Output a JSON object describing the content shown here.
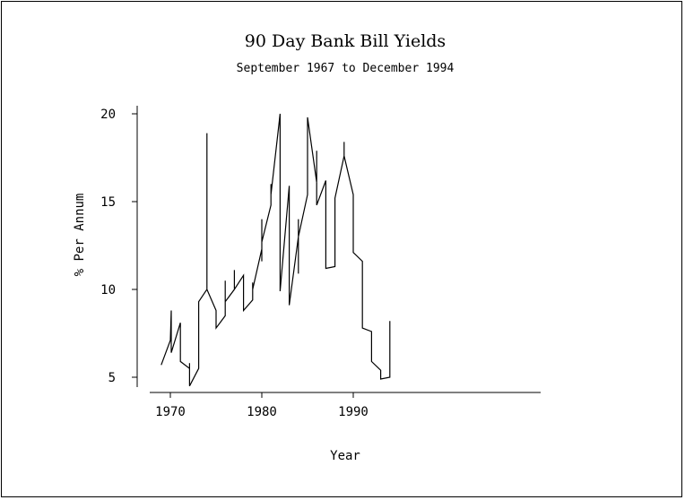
{
  "chart_data": {
    "type": "line",
    "title": "90 Day Bank Bill Yields",
    "subtitle": "September 1967 to December 1994",
    "xlabel": "Year",
    "ylabel": "% Per Annum",
    "xlim": [
      1968.3,
      1995.5
    ],
    "ylim": [
      4.0,
      20.5
    ],
    "x_ticks": [
      1970,
      1980,
      1990
    ],
    "y_ticks": [
      5,
      10,
      15,
      20
    ],
    "grid": false,
    "series": [
      {
        "points": [
          [
            1969.0,
            5.7
          ],
          [
            1970.0,
            7.1
          ],
          [
            1970.1,
            8.8
          ],
          [
            1970.1,
            6.4
          ],
          [
            1971.1,
            8.1
          ],
          [
            1971.1,
            5.9
          ],
          [
            1972.1,
            5.5
          ],
          [
            1972.1,
            5.8
          ],
          [
            1972.1,
            4.5
          ],
          [
            1973.1,
            5.5
          ],
          [
            1973.1,
            9.3
          ],
          [
            1974.0,
            10.0
          ],
          [
            1974.0,
            18.9
          ],
          [
            1974.0,
            10.0
          ],
          [
            1975.0,
            8.8
          ],
          [
            1975.0,
            7.8
          ],
          [
            1976.0,
            8.5
          ],
          [
            1976.0,
            10.5
          ],
          [
            1976.0,
            9.3
          ],
          [
            1977.0,
            10.0
          ],
          [
            1977.0,
            11.1
          ],
          [
            1977.0,
            10.0
          ],
          [
            1978.0,
            10.8
          ],
          [
            1978.0,
            8.8
          ],
          [
            1979.0,
            9.4
          ],
          [
            1979.0,
            10.4
          ],
          [
            1979.0,
            10.0
          ],
          [
            1980.0,
            12.3
          ],
          [
            1980.0,
            14.0
          ],
          [
            1980.0,
            11.6
          ],
          [
            1980.0,
            12.7
          ],
          [
            1981.0,
            14.8
          ],
          [
            1981.0,
            16.0
          ],
          [
            1981.0,
            15.4
          ],
          [
            1982.0,
            20.0
          ],
          [
            1982.0,
            9.9
          ],
          [
            1983.0,
            15.9
          ],
          [
            1983.0,
            9.1
          ],
          [
            1984.0,
            13.0
          ],
          [
            1984.0,
            14.0
          ],
          [
            1984.0,
            10.9
          ],
          [
            1984.0,
            13.0
          ],
          [
            1985.0,
            15.4
          ],
          [
            1985.0,
            19.8
          ],
          [
            1986.0,
            16.1
          ],
          [
            1986.0,
            17.9
          ],
          [
            1986.0,
            14.8
          ],
          [
            1987.0,
            16.2
          ],
          [
            1987.0,
            11.2
          ],
          [
            1988.0,
            11.3
          ],
          [
            1988.0,
            15.2
          ],
          [
            1989.0,
            17.6
          ],
          [
            1989.0,
            18.4
          ],
          [
            1989.0,
            17.6
          ],
          [
            1990.0,
            15.4
          ],
          [
            1990.0,
            12.1
          ],
          [
            1991.0,
            11.6
          ],
          [
            1991.0,
            7.8
          ],
          [
            1992.0,
            7.6
          ],
          [
            1992.0,
            5.9
          ],
          [
            1993.0,
            5.4
          ],
          [
            1993.0,
            4.9
          ],
          [
            1994.0,
            5.0
          ],
          [
            1994.0,
            8.2
          ]
        ]
      }
    ]
  }
}
